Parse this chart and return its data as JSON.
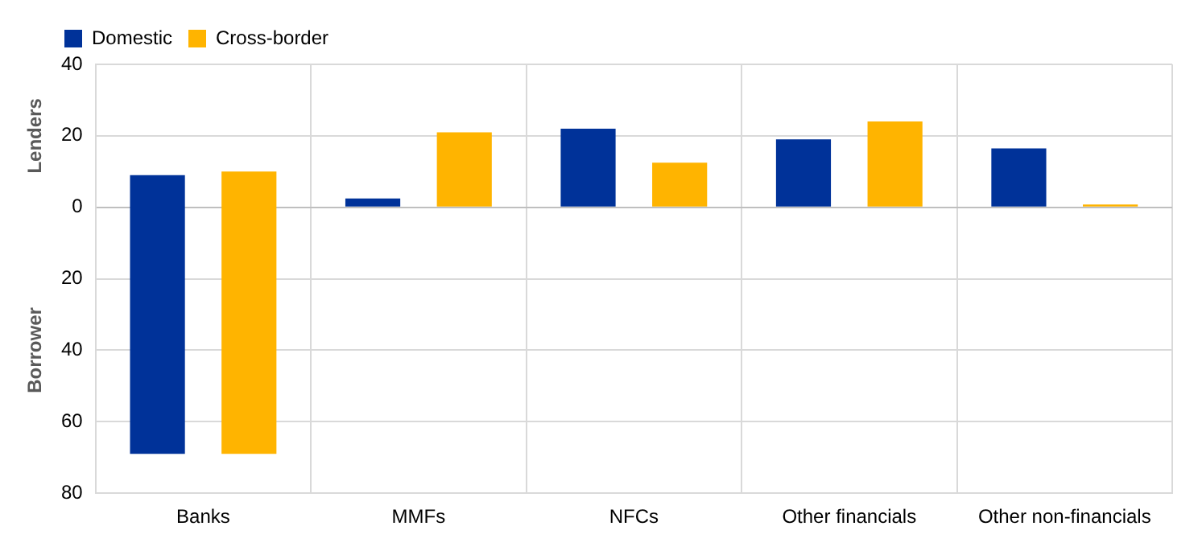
{
  "chart_data": {
    "type": "bar",
    "ylabel": "Lenders",
    "annotations": [
      "Borrower"
    ],
    "categories": [
      "Banks",
      "MMFs",
      "NFCs",
      "Other financials",
      "Other non-financials"
    ],
    "series": [
      {
        "name": "Domestic",
        "color": "#003299",
        "values": [
          78,
          2.5,
          22,
          19,
          16.5
        ],
        "base": [
          -69,
          0,
          0,
          0,
          0
        ]
      },
      {
        "name": "Cross-border",
        "color": "#ffb400",
        "values": [
          79,
          21,
          12.5,
          24,
          0.8
        ],
        "base": [
          -69,
          0,
          0,
          0,
          0
        ]
      }
    ],
    "ylim": [
      -80,
      40
    ],
    "yticks": [
      {
        "value": -80,
        "label": "80"
      },
      {
        "value": -60,
        "label": "60"
      },
      {
        "value": -40,
        "label": "40"
      },
      {
        "value": -20,
        "label": "20"
      },
      0,
      20,
      40
    ],
    "grid": true,
    "legend": "top left"
  }
}
